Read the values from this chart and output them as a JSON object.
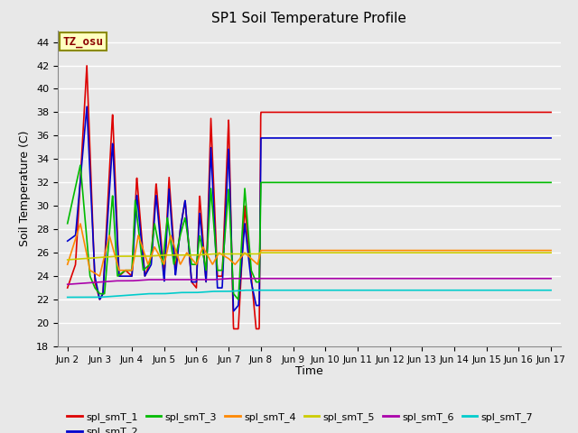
{
  "title": "SP1 Soil Temperature Profile",
  "xlabel": "Time",
  "ylabel": "Soil Temperature (C)",
  "ylim": [
    18,
    45
  ],
  "yticks": [
    18,
    20,
    22,
    24,
    26,
    28,
    30,
    32,
    34,
    36,
    38,
    40,
    42,
    44
  ],
  "annotation_text": "TZ_osu",
  "annotation_color": "#8B0000",
  "annotation_bg": "#FFFFC0",
  "annotation_border": "#8B8B00",
  "series": {
    "spl_smT_1": {
      "color": "#DD0000",
      "lw": 1.2
    },
    "spl_smT_2": {
      "color": "#0000CC",
      "lw": 1.2
    },
    "spl_smT_3": {
      "color": "#00BB00",
      "lw": 1.2
    },
    "spl_smT_4": {
      "color": "#FF8800",
      "lw": 1.2
    },
    "spl_smT_5": {
      "color": "#CCCC00",
      "lw": 1.2
    },
    "spl_smT_6": {
      "color": "#AA00AA",
      "lw": 1.2
    },
    "spl_smT_7": {
      "color": "#00CCCC",
      "lw": 1.2
    }
  },
  "plot_bg": "#E8E8E8",
  "grid_color": "#FFFFFF",
  "flat_vals": {
    "spl_smT_1": 38.0,
    "spl_smT_2": 35.8,
    "spl_smT_3": 32.0,
    "spl_smT_4": 26.2,
    "spl_smT_5": 26.0,
    "spl_smT_6": 23.8,
    "spl_smT_7": 22.8
  },
  "xtick_labels": [
    "Jun 2",
    "Jun 3",
    "Jun 4",
    "Jun 5",
    "Jun 6",
    "Jun 7",
    "Jun 8",
    "Jun 9",
    "Jun 10",
    "Jun 11",
    "Jun 12",
    "Jun 13",
    "Jun 14",
    "Jun 15",
    "Jun 16",
    "Jun 17"
  ],
  "xtick_positions": [
    0,
    1,
    2,
    3,
    4,
    5,
    6,
    7,
    8,
    9,
    10,
    11,
    12,
    13,
    14,
    15
  ]
}
